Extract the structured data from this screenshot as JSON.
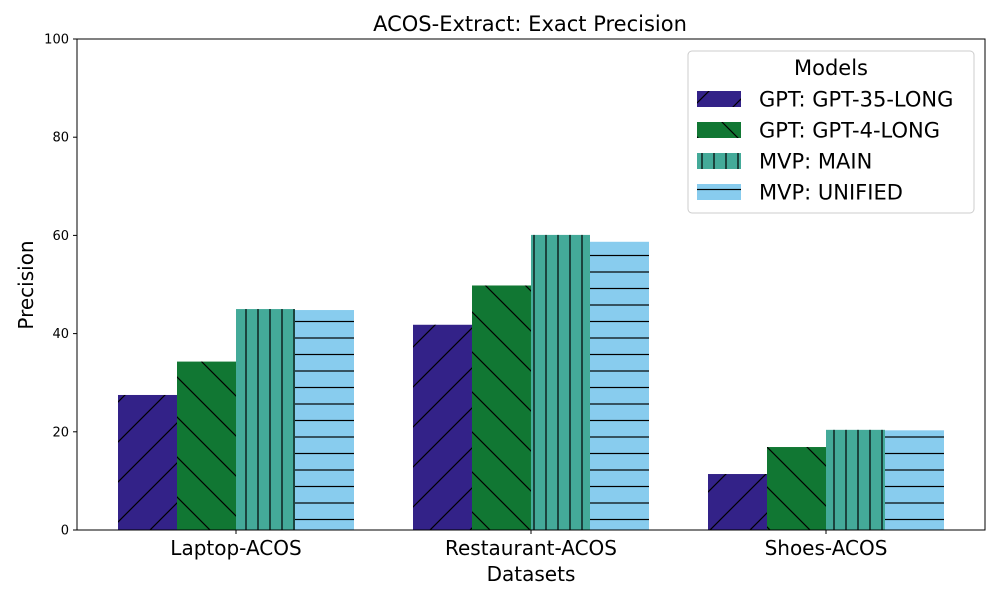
{
  "chart_data": {
    "type": "bar",
    "title": "ACOS-Extract: Exact Precision",
    "xlabel": "Datasets",
    "ylabel": "Precision",
    "ylim": [
      0,
      100
    ],
    "yticks": [
      "0",
      "20",
      "40",
      "60",
      "80",
      "100"
    ],
    "categories": [
      "Laptop-ACOS",
      "Restaurant-ACOS",
      "Shoes-ACOS"
    ],
    "grid": false,
    "legend": {
      "title": "Models",
      "placement": "top-right"
    },
    "series": [
      {
        "name": "GPT: GPT-35-LONG",
        "values": [
          27.5,
          41.8,
          11.4
        ],
        "color": "#332288",
        "hatch": "forward-diagonal"
      },
      {
        "name": "GPT: GPT-4-LONG",
        "values": [
          34.3,
          49.8,
          16.9
        ],
        "color": "#117733",
        "hatch": "back-diagonal"
      },
      {
        "name": "MVP: MAIN",
        "values": [
          45.0,
          60.1,
          20.4
        ],
        "color": "#44AA99",
        "hatch": "vertical"
      },
      {
        "name": "MVP: UNIFIED",
        "values": [
          44.8,
          58.7,
          20.3
        ],
        "color": "#88CCEE",
        "hatch": "horizontal"
      }
    ]
  }
}
